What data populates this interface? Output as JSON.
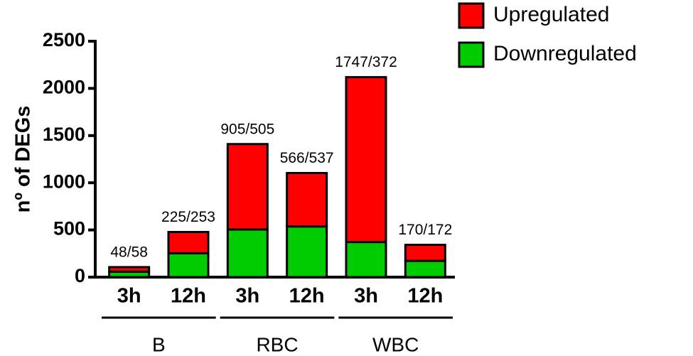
{
  "chart_data": {
    "type": "stacked_bar",
    "y_label": "nº of DEGs",
    "categories": [
      "3h",
      "12h",
      "3h",
      "12h",
      "3h",
      "12h"
    ],
    "groups": [
      "B",
      "RBC",
      "WBC"
    ],
    "series": [
      {
        "name": "Upregulated",
        "color": "#ff0000",
        "values": [
          48,
          225,
          905,
          566,
          1747,
          170
        ]
      },
      {
        "name": "Downregulated",
        "color": "#00cc00",
        "values": [
          58,
          253,
          505,
          537,
          372,
          172
        ]
      }
    ],
    "bar_labels": [
      "48/58",
      "225/253",
      "905/505",
      "566/537",
      "1747/372",
      "170/172"
    ],
    "ylim": [
      0,
      2500
    ],
    "yticks": [
      0,
      500,
      1000,
      1500,
      2000,
      2500
    ],
    "legend": "top-right"
  }
}
